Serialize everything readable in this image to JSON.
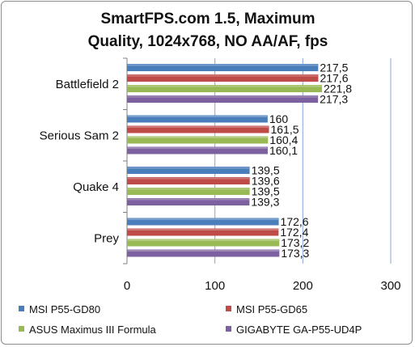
{
  "chart_data": {
    "type": "bar",
    "orientation": "horizontal",
    "title_lines": [
      "SmartFPS.com 1.5, Maximum",
      "Quality, 1024x768, NO AA/AF, fps"
    ],
    "categories": [
      "Battlefield 2",
      "Serious Sam 2",
      "Quake 4",
      "Prey"
    ],
    "series": [
      {
        "name": "MSI P55-GD80",
        "color": "#4a7ebb",
        "values": [
          217.5,
          160,
          139.5,
          172.6
        ],
        "labels": [
          "217,5",
          "160",
          "139,5",
          "172,6"
        ]
      },
      {
        "name": "MSI P55-GD65",
        "color": "#be4b48",
        "values": [
          217.6,
          161.5,
          139.6,
          172.4
        ],
        "labels": [
          "217,6",
          "161,5",
          "139,6",
          "172,4"
        ]
      },
      {
        "name": "ASUS Maximus III Formula",
        "color": "#98b954",
        "values": [
          221.8,
          160.4,
          139.5,
          173.2
        ],
        "labels": [
          "221,8",
          "160,4",
          "139,5",
          "173,2"
        ]
      },
      {
        "name": "GIGABYTE GA-P55-UD4P",
        "color": "#7d60a0",
        "values": [
          217.3,
          160.1,
          139.3,
          173.3
        ],
        "labels": [
          "217,3",
          "160,1",
          "139,3",
          "173,3"
        ]
      }
    ],
    "xlim": [
      0,
      300
    ],
    "xticks": [
      0,
      100,
      200,
      300
    ],
    "xtick_labels": [
      "0",
      "100",
      "200",
      "300"
    ],
    "grid": "vertical",
    "legend_position": "bottom"
  }
}
